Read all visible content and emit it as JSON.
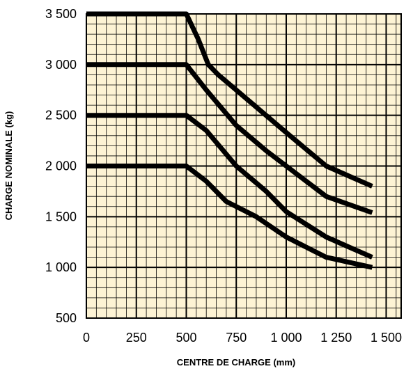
{
  "chart_data": {
    "type": "line",
    "xlabel": "CENTRE DE CHARGE (mm)",
    "ylabel": "CHARGE NOMINALE (kg)",
    "xlim": [
      0,
      1575
    ],
    "ylim": [
      500,
      3500
    ],
    "x_ticks": [
      0,
      250,
      500,
      750,
      1000,
      1250,
      1500
    ],
    "x_tick_labels": [
      "0",
      "250",
      "500",
      "750",
      "1 000",
      "1 250",
      "1 500"
    ],
    "y_ticks": [
      500,
      1000,
      1500,
      2000,
      2500,
      3000,
      3500
    ],
    "y_tick_labels": [
      "500",
      "1 000",
      "1 500",
      "2 000",
      "2 500",
      "3 000",
      "3 500"
    ],
    "grid": true,
    "grid_minor_step_x": 50,
    "grid_minor_step_y": 100,
    "background_color": "#fdf3d4",
    "line_color": "#000000",
    "series": [
      {
        "x": [
          0,
          500,
          560,
          610,
          660,
          750,
          1000,
          1200,
          1430
        ],
        "y": [
          3500,
          3500,
          3250,
          3000,
          2900,
          2750,
          2330,
          2000,
          1800
        ]
      },
      {
        "x": [
          0,
          500,
          600,
          750,
          900,
          1000,
          1200,
          1430
        ],
        "y": [
          3000,
          3000,
          2750,
          2400,
          2150,
          2000,
          1700,
          1540
        ]
      },
      {
        "x": [
          0,
          500,
          600,
          750,
          900,
          1000,
          1200,
          1430
        ],
        "y": [
          2500,
          2500,
          2350,
          2000,
          1750,
          1550,
          1300,
          1100
        ]
      },
      {
        "x": [
          0,
          500,
          600,
          700,
          850,
          1000,
          1200,
          1430
        ],
        "y": [
          2000,
          2000,
          1850,
          1650,
          1500,
          1300,
          1100,
          1000
        ]
      }
    ]
  }
}
